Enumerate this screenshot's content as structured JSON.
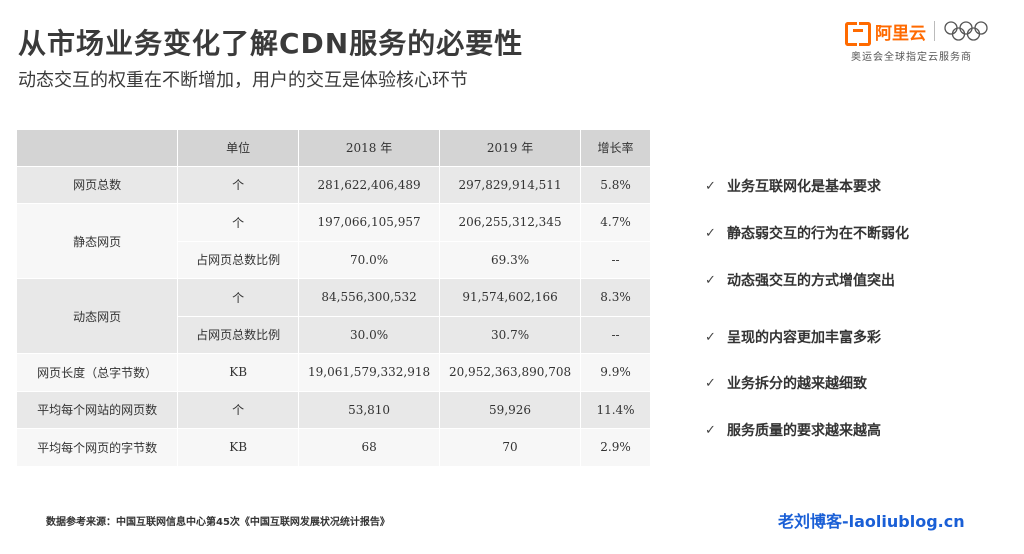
{
  "header": {
    "title": "从市场业务变化了解CDN服务的必要性",
    "subtitle": "动态交互的权重在不断增加，用户的交互是体验核心环节"
  },
  "brand": {
    "name": "阿里云",
    "tagline": "奥运会全球指定云服务商",
    "accent_color": "#ff6a00",
    "icons": [
      "aliyun-logo-icon",
      "olympic-rings-icon"
    ]
  },
  "table": {
    "headers": [
      "",
      "单位",
      "2018 年",
      "2019 年",
      "增长率"
    ],
    "rows": [
      {
        "label": "网页总数",
        "unit": "个",
        "y2018": "281,622,406,489",
        "y2019": "297,829,914,511",
        "growth": "5.8%"
      },
      {
        "label": "静态网页",
        "unit": "个",
        "y2018": "197,066,105,957",
        "y2019": "206,255,312,345",
        "growth": "4.7%"
      },
      {
        "label": "",
        "unit": "占网页总数比例",
        "y2018": "70.0%",
        "y2019": "69.3%",
        "growth": "--"
      },
      {
        "label": "动态网页",
        "unit": "个",
        "y2018": "84,556,300,532",
        "y2019": "91,574,602,166",
        "growth": "8.3%"
      },
      {
        "label": "",
        "unit": "占网页总数比例",
        "y2018": "30.0%",
        "y2019": "30.7%",
        "growth": "--"
      },
      {
        "label": "网页长度（总字节数）",
        "unit": "KB",
        "y2018": "19,061,579,332,918",
        "y2019": "20,952,363,890,708",
        "growth": "9.9%"
      },
      {
        "label": "平均每个网站的网页数",
        "unit": "个",
        "y2018": "53,810",
        "y2019": "59,926",
        "growth": "11.4%"
      },
      {
        "label": "平均每个网页的字节数",
        "unit": "KB",
        "y2018": "68",
        "y2019": "70",
        "growth": "2.9%"
      }
    ]
  },
  "bullets": [
    "业务互联网化是基本要求",
    "静态弱交互的行为在不断弱化",
    "动态强交互的方式增值突出",
    "呈现的内容更加丰富多彩",
    "业务拆分的越来越细致",
    "服务质量的要求越来越高"
  ],
  "bullet_mark": "✓",
  "footer": {
    "source": "数据参考来源：中国互联网信息中心第45次《中国互联网发展状况统计报告》",
    "watermark": "老刘博客-laoliublog.cn"
  }
}
